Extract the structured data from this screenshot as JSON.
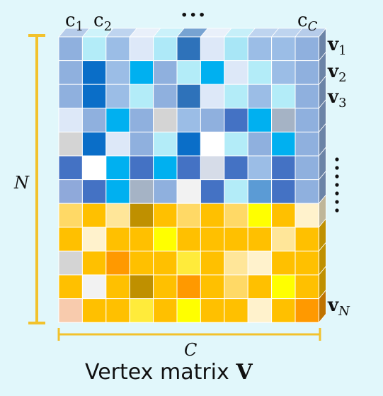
{
  "column_labels": [
    {
      "base": "c",
      "sub": "1"
    },
    {
      "base": "c",
      "sub": "2"
    },
    {
      "base": "c",
      "sub": "C"
    }
  ],
  "column_ellipsis": "···",
  "row_labels": [
    {
      "base": "v",
      "sub": "1"
    },
    {
      "base": "v",
      "sub": "2"
    },
    {
      "base": "v",
      "sub": "3"
    },
    {
      "base": "v",
      "sub": "N"
    }
  ],
  "rows_dimension": "N",
  "cols_dimension": "C",
  "caption_text": "Vertex matrix",
  "caption_symbol": "V",
  "colors": {
    "dimension_bracket": "#f2c22c",
    "background": "#e1f7fb"
  },
  "matrix_colors": [
    [
      "#8fb0de",
      "#b3ecf8",
      "#9bbde6",
      "#dde8f8",
      "#aee9f8",
      "#2e72ba",
      "#dde8f8",
      "#a8e6f6",
      "#9bbde6",
      "#9bbde6",
      "#8fb0de"
    ],
    [
      "#8fb0de",
      "#0a6ec8",
      "#9bbde6",
      "#00b0f0",
      "#8fb0de",
      "#b3ecf8",
      "#00b0f0",
      "#dde8f8",
      "#b3ecf8",
      "#9bbde6",
      "#8fb0de"
    ],
    [
      "#8fb0de",
      "#0a6ec8",
      "#9bbde6",
      "#b3ecf8",
      "#8fb0de",
      "#2e72ba",
      "#dde8f8",
      "#b3ecf8",
      "#9bbde6",
      "#b3ecf8",
      "#8fb0de"
    ],
    [
      "#dde8f8",
      "#8fb0de",
      "#00b0f0",
      "#8fb0de",
      "#d4d4d4",
      "#9bbde6",
      "#8fb0de",
      "#4472c4",
      "#00b0f0",
      "#a5b3c5",
      "#8fb0de"
    ],
    [
      "#d4d4d4",
      "#0a6ec8",
      "#dde8f8",
      "#8fb0de",
      "#b3ecf8",
      "#0a6ec8",
      "#ffffff",
      "#b3ecf8",
      "#8fb0de",
      "#00b0f0",
      "#8fb0de"
    ],
    [
      "#4472c4",
      "#ffffff",
      "#00b0f0",
      "#4472c4",
      "#00b0f0",
      "#4472c4",
      "#d6dce8",
      "#4472c4",
      "#9bbde6",
      "#4472c4",
      "#8fb0de"
    ],
    [
      "#8fa9da",
      "#4472c4",
      "#00b0f0",
      "#a5b3c5",
      "#8fb0de",
      "#f2f2f2",
      "#4472c4",
      "#b3ecf8",
      "#5b9bd5",
      "#4472c4",
      "#8fb0de"
    ],
    [
      "#ffd966",
      "#ffc000",
      "#ffe699",
      "#bf9000",
      "#ffc000",
      "#ffd966",
      "#ffc000",
      "#ffd966",
      "#ffff00",
      "#ffc000",
      "#fff2cc"
    ],
    [
      "#ffc000",
      "#fff2cc",
      "#ffc000",
      "#ffc000",
      "#ffff00",
      "#ffc000",
      "#ffc000",
      "#ffc000",
      "#ffc000",
      "#ffe699",
      "#ffc000"
    ],
    [
      "#d4d4d4",
      "#ffc000",
      "#ff9900",
      "#ffc000",
      "#ffc000",
      "#ffeb3b",
      "#ffc000",
      "#ffe699",
      "#fff2cc",
      "#ffc000",
      "#ffc000"
    ],
    [
      "#ffc000",
      "#f2f2f2",
      "#ffc000",
      "#bf9000",
      "#ffc000",
      "#ff9900",
      "#ffc000",
      "#ffd966",
      "#ffc000",
      "#ffff00",
      "#ffc000"
    ],
    [
      "#f8cbad",
      "#ffc000",
      "#ffc000",
      "#ffeb3b",
      "#ffc000",
      "#ffff00",
      "#ffc000",
      "#ffc000",
      "#fff2cc",
      "#ffc000",
      "#ff9900"
    ]
  ]
}
